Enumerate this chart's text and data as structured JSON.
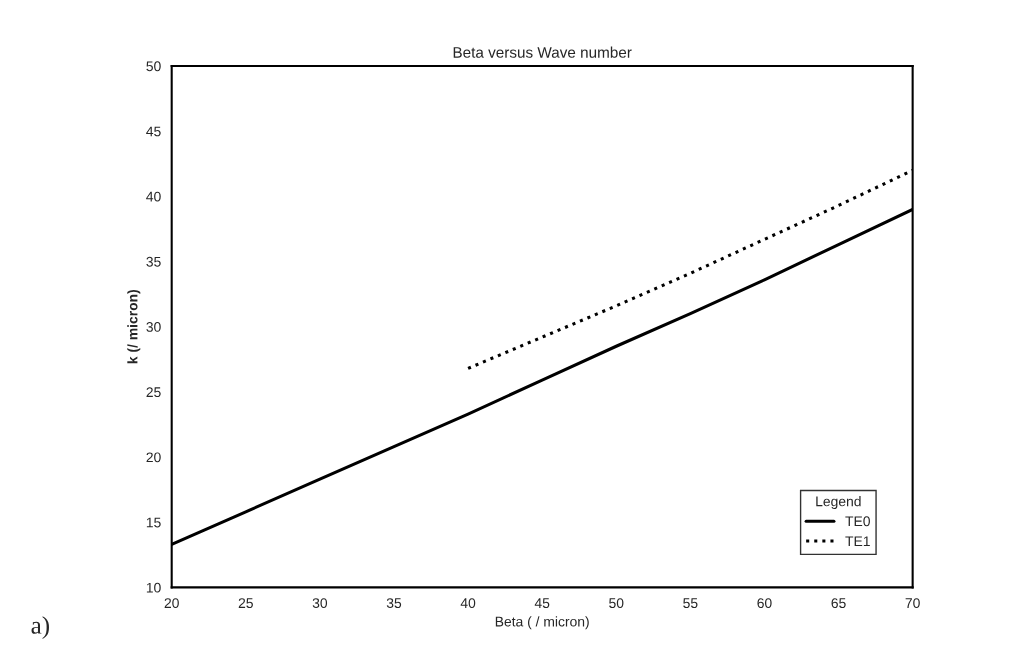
{
  "chart_data": {
    "type": "line",
    "title": "Beta versus Wave number",
    "xlabel": "Beta ( / micron)",
    "ylabel": "k (/ micron)",
    "legend_title": "Legend",
    "annotations": [
      "a)"
    ],
    "xlim": [
      20,
      70
    ],
    "xticks": [
      20,
      25,
      30,
      35,
      40,
      45,
      50,
      55,
      60,
      65,
      70
    ],
    "ylim": [
      10,
      50
    ],
    "yticks": [
      10,
      15,
      20,
      25,
      30,
      35,
      40,
      45,
      50
    ],
    "grid": false,
    "legend": "bottom right",
    "marker": "none",
    "series": [
      {
        "name": "TE0",
        "color": "#000000",
        "line_style": "solid",
        "x": [
          20,
          25,
          30,
          35,
          40,
          45,
          50,
          55,
          60,
          65,
          70
        ],
        "values": [
          13.3,
          15.8,
          18.3,
          20.8,
          23.3,
          25.9,
          28.5,
          31.0,
          33.6,
          36.3,
          39.0
        ]
      },
      {
        "name": "TE1",
        "color": "#000000",
        "line_style": "dotted",
        "x": [
          40,
          45,
          50,
          55,
          60,
          65,
          70
        ],
        "values": [
          26.8,
          29.2,
          31.6,
          34.1,
          36.7,
          39.3,
          42.0
        ]
      }
    ]
  }
}
